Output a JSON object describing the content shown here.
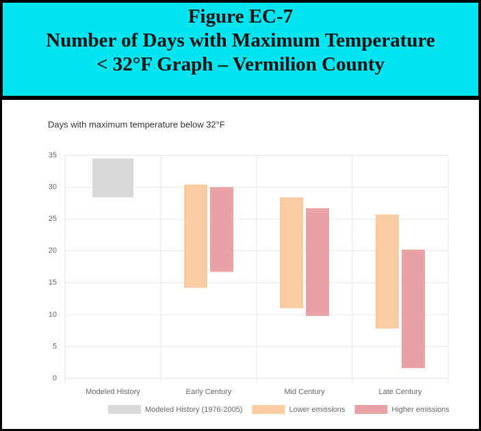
{
  "header": {
    "title": [
      "Figure EC-7",
      "Number of Days with Maximum Temperature",
      "< 32°F Graph – Vermilion County"
    ]
  },
  "chart_data": {
    "type": "range-bar",
    "title": "Days with maximum temperature below 32°F",
    "categories": [
      "Modeled History",
      "Early Century",
      "Mid Century",
      "Late Century"
    ],
    "series": [
      {
        "name": "Modeled History (1976-2005)",
        "color": "#d9d9d9",
        "low": [
          28.4,
          null,
          null,
          null
        ],
        "high": [
          34.5,
          null,
          null,
          null
        ]
      },
      {
        "name": "Lower emissions",
        "color": "#f9cba1",
        "low": [
          null,
          14.2,
          11,
          7.8
        ],
        "high": [
          null,
          30.4,
          28.4,
          25.7
        ]
      },
      {
        "name": "Higher emissions",
        "color": "#e9a3a6",
        "low": [
          null,
          16.7,
          9.8,
          1.6
        ],
        "high": [
          null,
          30,
          26.7,
          20.2
        ]
      }
    ],
    "ylim": [
      0,
      35
    ],
    "yticks": [
      0,
      5,
      10,
      15,
      20,
      25,
      30,
      35
    ],
    "grid": true
  }
}
